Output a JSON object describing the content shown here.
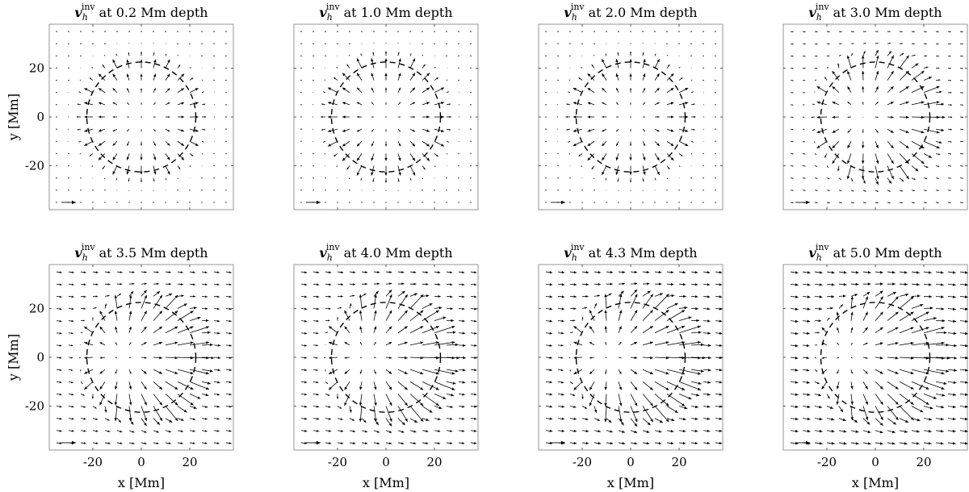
{
  "chart_data": {
    "type": "quiver",
    "layout": "2x4 panel grid",
    "title_prefix": "v",
    "title_subscript": "h",
    "title_superscript": "inv",
    "xlabel": "x [Mm]",
    "ylabel": "y [Mm]",
    "xlim": [
      -38,
      38
    ],
    "ylim": [
      -38,
      38
    ],
    "xticks": [
      -20,
      0,
      20
    ],
    "yticks": [
      -20,
      0,
      20
    ],
    "xtick_labels": [
      "-20",
      "0",
      "20"
    ],
    "ytick_labels": [
      "-20",
      "0",
      "20"
    ],
    "grid": false,
    "grid_spacing_Mm": 5,
    "reference_circle": {
      "center": [
        0,
        0
      ],
      "radius_Mm": 22.5,
      "style": "dashed"
    },
    "reference_arrow": {
      "x": -33,
      "y": -35,
      "dx": 6,
      "dy": 0
    },
    "panels": [
      {
        "title_rest": "at 0.2 Mm depth",
        "outflow_peak": 4.0,
        "background_flow_x": 0.0,
        "background_flow_y": 0.0
      },
      {
        "title_rest": "at 1.0 Mm depth",
        "outflow_peak": 4.5,
        "background_flow_x": 0.0,
        "background_flow_y": 0.0
      },
      {
        "title_rest": "at 2.0 Mm depth",
        "outflow_peak": 4.2,
        "background_flow_x": 0.0,
        "background_flow_y": 0.0
      },
      {
        "title_rest": "at 3.0 Mm depth",
        "outflow_peak": 6.0,
        "background_flow_x": 1.2,
        "background_flow_y": -0.15
      },
      {
        "title_rest": "at 3.5 Mm depth",
        "outflow_peak": 6.5,
        "background_flow_x": 2.2,
        "background_flow_y": -0.3
      },
      {
        "title_rest": "at 4.0 Mm depth",
        "outflow_peak": 6.8,
        "background_flow_x": 2.4,
        "background_flow_y": -0.3
      },
      {
        "title_rest": "at 4.3 Mm depth",
        "outflow_peak": 7.0,
        "background_flow_x": 2.7,
        "background_flow_y": -0.3
      },
      {
        "title_rest": "at 5.0 Mm depth",
        "outflow_peak": 6.0,
        "background_flow_x": 3.2,
        "background_flow_y": -0.4
      }
    ]
  }
}
